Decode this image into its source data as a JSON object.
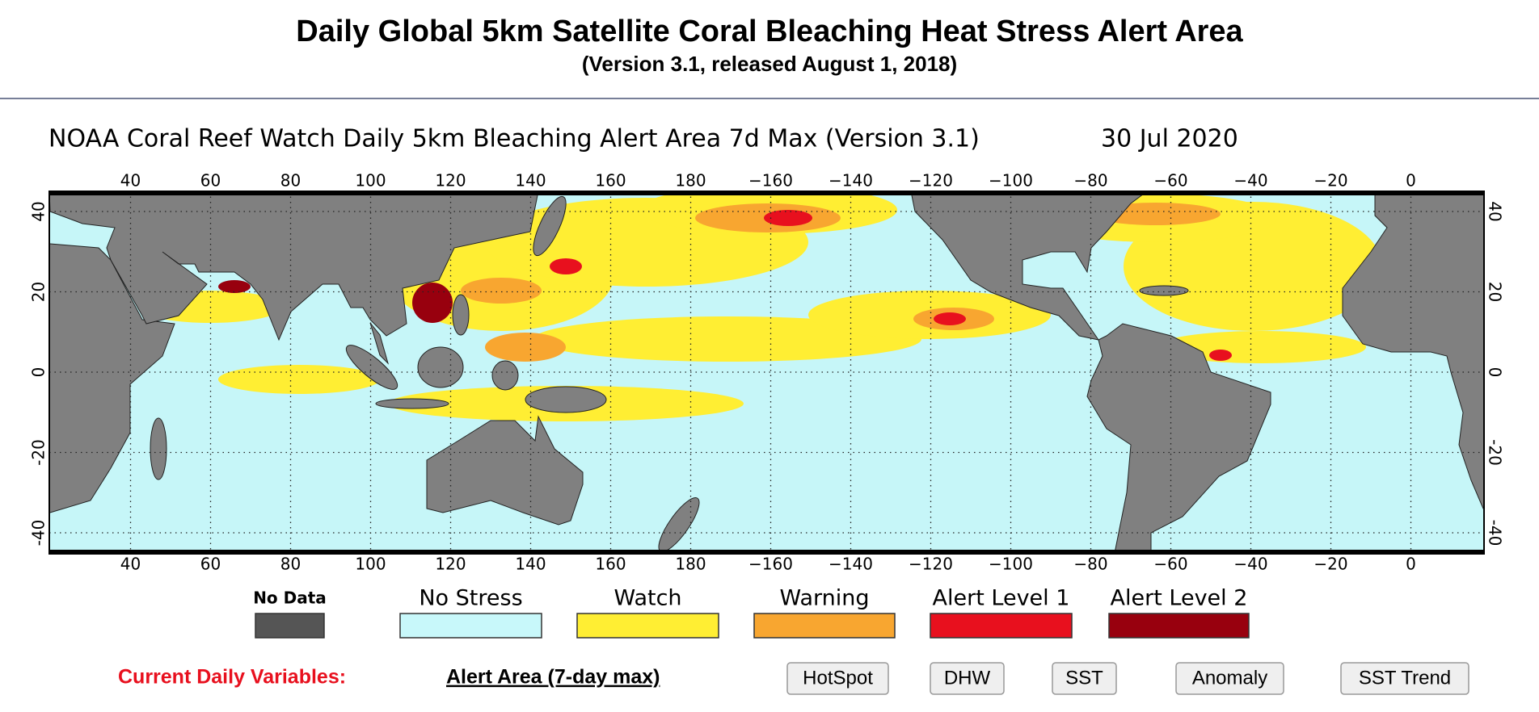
{
  "header": {
    "title": "Daily Global 5km Satellite Coral Bleaching Heat Stress Alert Area",
    "subtitle": "(Version 3.1, released August 1, 2018)"
  },
  "map": {
    "title": "NOAA Coral Reef Watch Daily 5km Bleaching Alert Area 7d Max (Version 3.1)",
    "date": "30 Jul 2020",
    "lon_labels": [
      "40",
      "60",
      "80",
      "100",
      "120",
      "140",
      "160",
      "180",
      "−160",
      "−140",
      "−120",
      "−100",
      "−80",
      "−60",
      "−40",
      "−20",
      "0"
    ],
    "lat_labels": [
      "40",
      "20",
      "0",
      "-20",
      "-40"
    ]
  },
  "legend": [
    {
      "label": "No Data",
      "color": "#555555"
    },
    {
      "label": "No Stress",
      "color": "#c8f8fa"
    },
    {
      "label": "Watch",
      "color": "#ffee33"
    },
    {
      "label": "Warning",
      "color": "#f8a630"
    },
    {
      "label": "Alert Level 1",
      "color": "#e8101e"
    },
    {
      "label": "Alert Level 2",
      "color": "#98000e"
    }
  ],
  "nav": {
    "label": "Current Daily Variables:",
    "current": "Alert Area (7-day max)",
    "buttons": [
      "HotSpot",
      "DHW",
      "SST",
      "Anomaly",
      "SST Trend"
    ]
  }
}
